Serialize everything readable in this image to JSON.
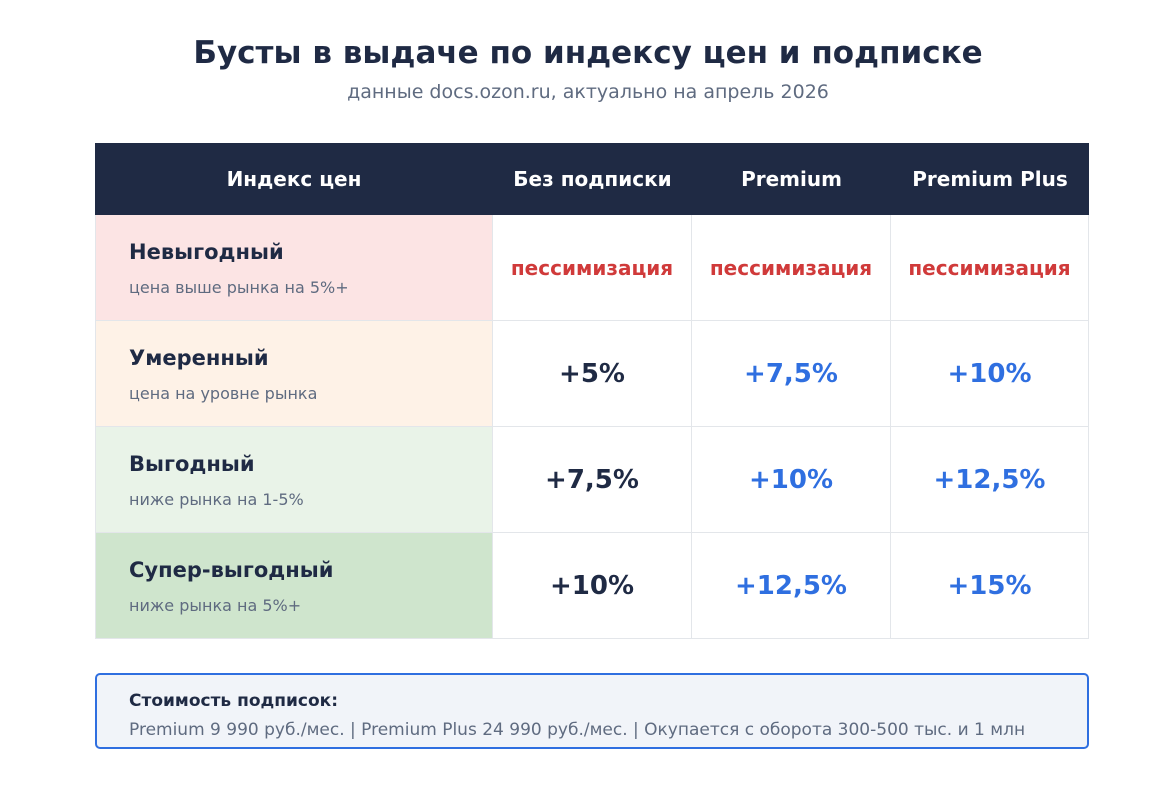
{
  "header": {
    "title": "Бусты в выдаче по индексу цен и подписке",
    "subtitle": "данные docs.ozon.ru, актуально на апрель 2026"
  },
  "table": {
    "columns": [
      "Индекс цен",
      "Без подписки",
      "Premium",
      "Premium Plus"
    ],
    "rows": [
      {
        "name": "Невыгодный",
        "desc": "цена выше рынка на 5%+",
        "values": [
          "пессимизация",
          "пессимизация",
          "пессимизация"
        ]
      },
      {
        "name": "Умеренный",
        "desc": "цена на уровне рынка",
        "values": [
          "+5%",
          "+7,5%",
          "+10%"
        ]
      },
      {
        "name": "Выгодный",
        "desc": "ниже рынка на 1-5%",
        "values": [
          "+7,5%",
          "+10%",
          "+12,5%"
        ]
      },
      {
        "name": "Супер-выгодный",
        "desc": "ниже рынка на 5%+",
        "values": [
          "+10%",
          "+12,5%",
          "+15%"
        ]
      }
    ]
  },
  "note": {
    "title": "Стоимость подписок:",
    "text": "Premium 9 990 руб./мес. | Premium Plus 24 990 руб./мес. | Окупается с оборота 300-500 тыс. и 1 млн"
  },
  "colors": {
    "header_bg": "#1f2a44",
    "accent_blue": "#2f6fe0",
    "negative_red": "#d03a3a",
    "row_unfavorable": "#fce4e4",
    "row_moderate": "#fef2e7",
    "row_favorable": "#e9f3e8",
    "row_super": "#cfe5cd"
  }
}
